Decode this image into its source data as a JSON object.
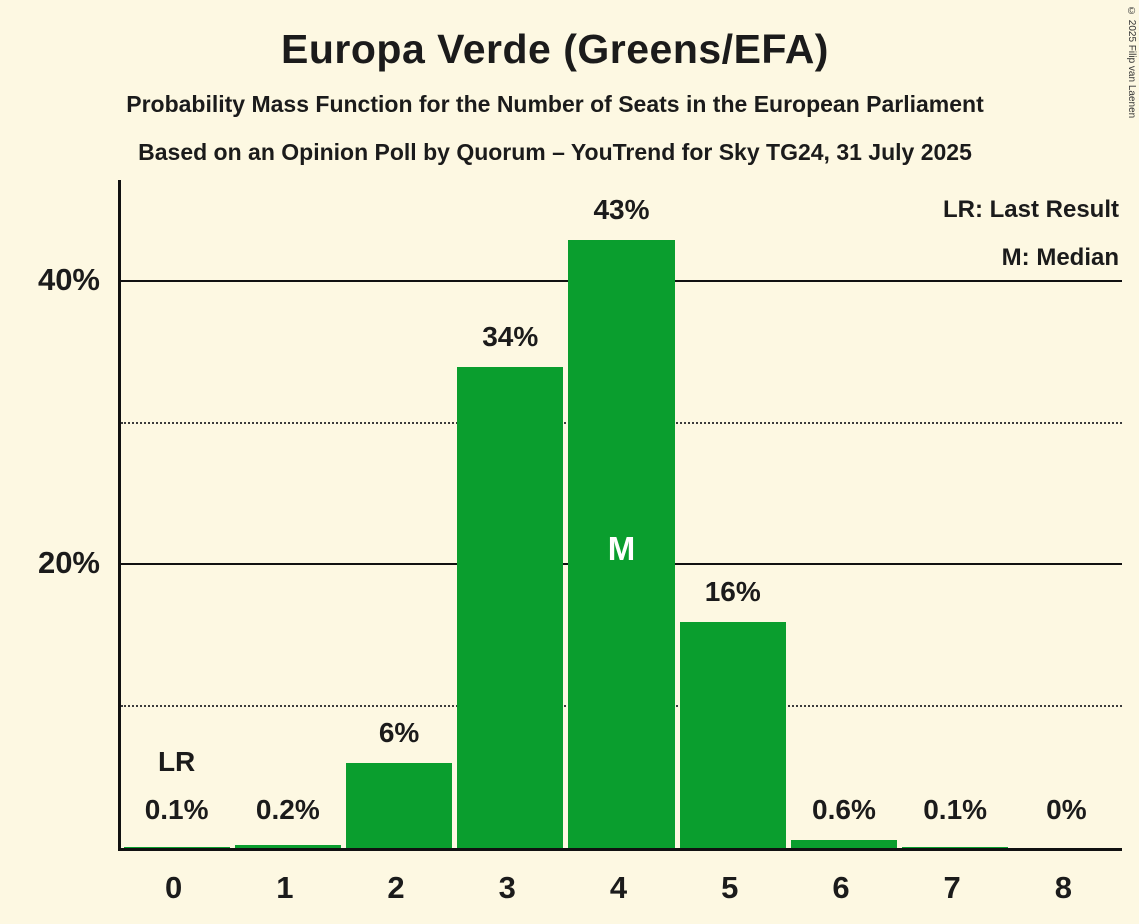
{
  "title": "Europa Verde (Greens/EFA)",
  "subtitle1": "Probability Mass Function for the Number of Seats in the European Parliament",
  "subtitle2": "Based on an Opinion Poll by Quorum – YouTrend for Sky TG24, 31 July 2025",
  "legend": {
    "lr": "LR: Last Result",
    "m": "M: Median"
  },
  "copyright": "© 2025 Filip van Laenen",
  "colors": {
    "bar": "#0a9e2e",
    "background": "#fdf8e2",
    "text": "#1b1b1b"
  },
  "chart_data": {
    "type": "bar",
    "title": "Europa Verde (Greens/EFA)",
    "categories": [
      "0",
      "1",
      "2",
      "3",
      "4",
      "5",
      "6",
      "7",
      "8"
    ],
    "values": [
      0.1,
      0.2,
      6,
      34,
      43,
      16,
      0.6,
      0.1,
      0
    ],
    "value_labels": [
      "0.1%",
      "0.2%",
      "6%",
      "34%",
      "43%",
      "16%",
      "0.6%",
      "0.1%",
      "0%"
    ],
    "ylim": [
      0,
      47
    ],
    "yticks": [
      {
        "value": 20,
        "label": "20%"
      },
      {
        "value": 40,
        "label": "40%"
      }
    ],
    "solid_gridlines": [
      20,
      40
    ],
    "dotted_gridlines": [
      10,
      30
    ],
    "grid": true,
    "legend_position": "top-right",
    "median_index": 4,
    "median_marker": "M",
    "last_result_index": 0,
    "last_result_marker": "LR"
  }
}
